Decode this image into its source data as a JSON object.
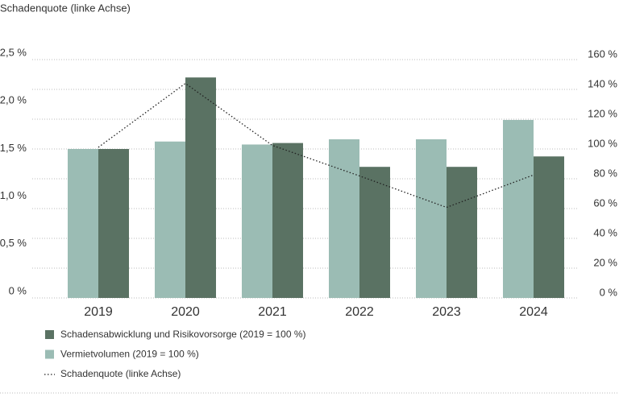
{
  "chart_data": {
    "type": "bar-line",
    "title": "Schadenquote (linke Achse)",
    "categories": [
      "2019",
      "2020",
      "2021",
      "2022",
      "2023",
      "2024"
    ],
    "ylim": [
      0,
      2.5
    ],
    "yticks": [
      {
        "value": 0,
        "label": "0 %"
      },
      {
        "value": 0.5,
        "label": "0,5 %"
      },
      {
        "value": 1.0,
        "label": "1,0 %"
      },
      {
        "value": 1.5,
        "label": "1,5 %"
      },
      {
        "value": 2.0,
        "label": "2,0 %"
      },
      {
        "value": 2.5,
        "label": "2,5 %"
      }
    ],
    "y2lim": [
      0,
      160
    ],
    "y2ticks": [
      {
        "value": 0,
        "label": "0 %"
      },
      {
        "value": 20,
        "label": "20 %"
      },
      {
        "value": 40,
        "label": "40 %"
      },
      {
        "value": 60,
        "label": "60 %"
      },
      {
        "value": 80,
        "label": "80 %"
      },
      {
        "value": 100,
        "label": "100 %"
      },
      {
        "value": 120,
        "label": "120 %"
      },
      {
        "value": 140,
        "label": "140 %"
      },
      {
        "value": 160,
        "label": "160 %"
      }
    ],
    "grid": true,
    "series": [
      {
        "name": "Schadensabwicklung und Risikovorsorge (2019 = 100 %)",
        "type": "bar",
        "axis": "y2",
        "color": "#5a7263",
        "values": [
          100,
          148,
          104,
          88,
          88,
          95
        ]
      },
      {
        "name": "Vermietvolumen (2019 = 100 %)",
        "type": "bar",
        "axis": "y2",
        "color": "#9bbcb4",
        "values": [
          100,
          105,
          103,
          106.5,
          106.5,
          119.5
        ]
      },
      {
        "name": "Schadenquote (linke Achse)",
        "type": "line",
        "axis": "y",
        "color": "#222222",
        "values": [
          1.58,
          2.25,
          1.6,
          1.28,
          0.95,
          1.29
        ]
      }
    ]
  }
}
